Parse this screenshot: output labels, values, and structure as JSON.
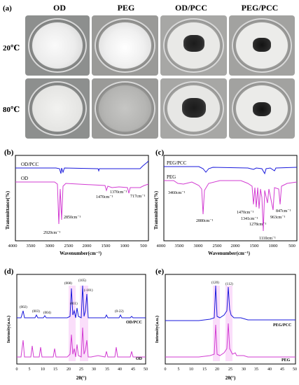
{
  "figure": {
    "panel_a": {
      "letter": "(a)",
      "columns": [
        "OD",
        "PEG",
        "OD/PCC",
        "PEG/PCC"
      ],
      "rows": [
        "20℃",
        "80℃"
      ]
    },
    "panel_b": {
      "letter": "(b)",
      "ylabel": "Transmittance(%)",
      "xlabel": "Wavenumber(cm⁻¹)",
      "ticks": [
        "4000",
        "3500",
        "3000",
        "2500",
        "2000",
        "1500",
        "1000",
        "500"
      ],
      "legend_top": "OD/PCC",
      "legend_bottom": "OD",
      "annotations": [
        "2920cm⁻¹",
        "2850cm⁻¹",
        "1470cm⁻¹",
        "1370cm⁻¹",
        "717cm⁻¹"
      ]
    },
    "panel_c": {
      "letter": "(c)",
      "ylabel": "Transmittance(%)",
      "xlabel": "Wavenumber(cm⁻¹)",
      "ticks": [
        "4000",
        "3500",
        "3000",
        "2500",
        "2000",
        "1500",
        "1000",
        "500"
      ],
      "legend_top": "PEG/PCC",
      "legend_bottom": "PEG",
      "annotations": [
        "3460cm⁻¹",
        "2880cm⁻¹",
        "1470cm⁻¹",
        "1341cm⁻¹",
        "1278cm⁻¹",
        "1110cm⁻¹",
        "963cm⁻¹",
        "847cm⁻¹"
      ]
    },
    "panel_d": {
      "letter": "(d)",
      "ylabel": "Intensity(a.u.)",
      "xlabel": "2θ(°)",
      "ticks": [
        "0",
        "5",
        "10",
        "15",
        "20",
        "25",
        "30",
        "35",
        "40",
        "45",
        "50"
      ],
      "legend_top": "OD/PCC",
      "legend_bottom": "OD",
      "peak_labels": [
        "(002)",
        "(003)",
        "(004)",
        "(008)",
        "(011)",
        "(105)",
        "(-101)",
        "(0-22)"
      ]
    },
    "panel_e": {
      "letter": "(e)",
      "ylabel": "Intensity(a.u.)",
      "xlabel": "2θ(°)",
      "ticks": [
        "0",
        "5",
        "10",
        "15",
        "20",
        "25",
        "30",
        "35",
        "40",
        "45",
        "50"
      ],
      "legend_top": "PEG/PCC",
      "legend_bottom": "PEG",
      "peak_labels": [
        "(120)",
        "(112)"
      ]
    }
  },
  "colors": {
    "blue": "#1a1adc",
    "magenta": "#d23cd2",
    "pink_fill": "#f6c8f6"
  }
}
